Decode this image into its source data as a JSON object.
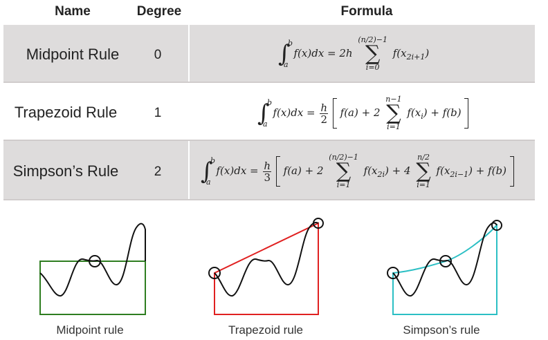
{
  "table": {
    "headers": {
      "name": "Name",
      "degree": "Degree",
      "formula": "Formula"
    },
    "rows": [
      {
        "name": "Midpoint Rule",
        "degree": "0"
      },
      {
        "name": "Trapezoid Rule",
        "degree": "1"
      },
      {
        "name": "Simpson’s Rule",
        "degree": "2"
      }
    ],
    "formulas": {
      "midpoint": {
        "integral": "f(x)dx = 2h",
        "sum_top": "(n/2)−1",
        "sum_bot": "i=0",
        "term": "f(x",
        "term_sub": "2i+1",
        "term_end": ")"
      },
      "trapezoid": {
        "integral": "f(x)dx =",
        "frac_num": "h",
        "frac_den": "2",
        "part1": "f(a) + 2",
        "sum_top": "n−1",
        "sum_bot": "i=1",
        "part2": "f(x",
        "part2_sub": "i",
        "part3": ") + f(b)"
      },
      "simpson": {
        "integral": "f(x)dx =",
        "frac_num": "h",
        "frac_den": "3",
        "part1": "f(a) + 2",
        "sum1_top": "(n/2)−1",
        "sum1_bot": "i=1",
        "part2": "f(x",
        "part2_sub": "2i",
        "part3": ") + 4",
        "sum2_top": "n/2",
        "sum2_bot": "i=1",
        "part4": "f(x",
        "part4_sub": "2i−1",
        "part5": ") + f(b)"
      },
      "limit_upper": "b",
      "limit_lower": "a"
    }
  },
  "captions": {
    "midpoint": "Midpoint rule",
    "trapezoid": "Trapezoid rule",
    "simpson": "Simpson’s rule"
  },
  "colors": {
    "midpoint": "#2e7d20",
    "trapezoid": "#e02020",
    "simpson": "#2bbfc4",
    "curve": "#111111"
  }
}
